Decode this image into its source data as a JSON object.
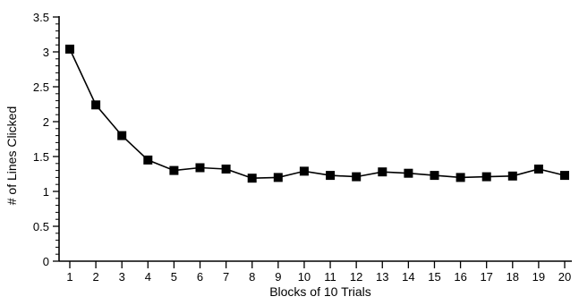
{
  "chart_data": {
    "type": "line",
    "xlabel": "Blocks of 10 Trials",
    "ylabel": "# of Lines Clicked",
    "x": [
      1,
      2,
      3,
      4,
      5,
      6,
      7,
      8,
      9,
      10,
      11,
      12,
      13,
      14,
      15,
      16,
      17,
      18,
      19,
      20
    ],
    "x_tick_labels": [
      "1",
      "2",
      "3",
      "4",
      "5",
      "6",
      "7",
      "8",
      "9",
      "10",
      "11",
      "12",
      "13",
      "14",
      "15",
      "16",
      "17",
      "18",
      "19",
      "20"
    ],
    "y_tick_labels": [
      "0",
      "0.5",
      "1",
      "1.5",
      "2",
      "2.5",
      "3",
      "3.5"
    ],
    "ylim": [
      0,
      3.5
    ],
    "xlim": [
      0.5,
      20.5
    ],
    "grid": false,
    "marker": "square",
    "series": [
      {
        "values": [
          3.04,
          2.24,
          1.8,
          1.45,
          1.3,
          1.34,
          1.32,
          1.19,
          1.2,
          1.29,
          1.23,
          1.21,
          1.28,
          1.26,
          1.23,
          1.2,
          1.21,
          1.22,
          1.32,
          1.23
        ],
        "color": "#000000"
      }
    ]
  }
}
